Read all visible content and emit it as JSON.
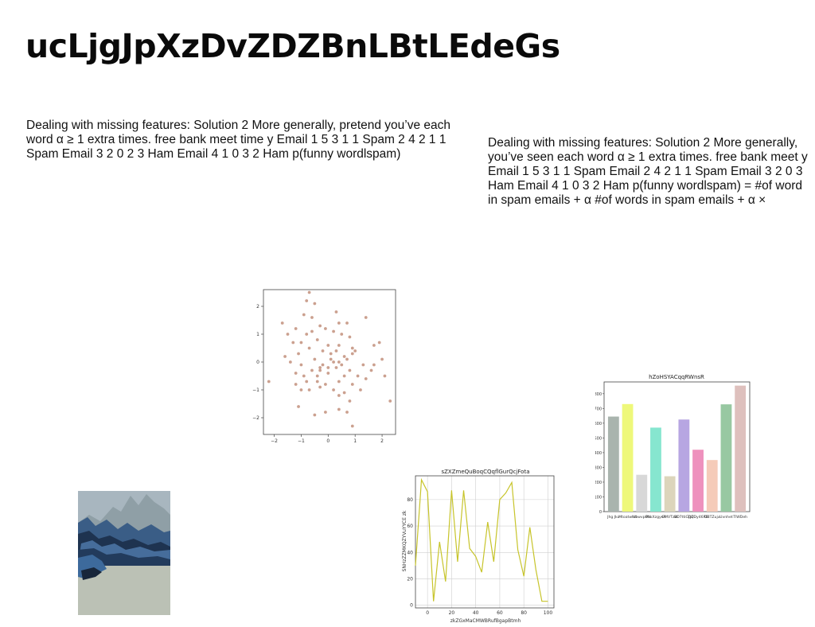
{
  "title": "ucLjgJpXzDvZDZBnLBtLEdeGs",
  "paragraph_left": "Dealing with missing features: Solution 2 More generally, pretend you’ve each word α ≥ 1 extra times. free bank meet time y Email 1 5 3 1 1 Spam 2 4 2 1 1 Spam Email 3 2 0 2 3 Ham Email 4 1 0 3 2 Ham p(funny wordlspam)",
  "paragraph_right": "Dealing with missing features: Solution 2 More generally, you’ve seen each word α ≥ 1 extra times. free bank meet y Email 1 5 3 1 1 Spam Email 2 4 2 1 1 Spam Email 3 2 0 3 Ham Email 4 1 0 3 2 Ham p(funny wordlspam) = #of word in spam emails + α #of words in spam emails + α ×",
  "photo": {
    "subject": "mountain-landscape",
    "colors": [
      "#a6b4be",
      "#3c5f88",
      "#b8bfb3"
    ]
  },
  "chart_data": [
    {
      "type": "scatter",
      "title": "",
      "xlabel": "",
      "ylabel": "",
      "xlim": [
        -2.4,
        2.5
      ],
      "ylim": [
        -2.6,
        2.6
      ],
      "xticks": [
        -2,
        -1,
        0,
        1,
        2
      ],
      "yticks": [
        -2,
        -1,
        0,
        1,
        2
      ],
      "color": "#b9806a",
      "points": [
        [
          -0.7,
          2.5
        ],
        [
          -0.8,
          2.2
        ],
        [
          -0.5,
          2.1
        ],
        [
          -0.9,
          1.7
        ],
        [
          0.3,
          1.8
        ],
        [
          1.4,
          1.6
        ],
        [
          -1.7,
          1.4
        ],
        [
          -0.6,
          1.6
        ],
        [
          0.4,
          1.4
        ],
        [
          0.7,
          1.4
        ],
        [
          -1.2,
          1.2
        ],
        [
          -0.3,
          1.3
        ],
        [
          -0.1,
          1.2
        ],
        [
          0.2,
          1.1
        ],
        [
          -1.5,
          1.0
        ],
        [
          -0.8,
          1.0
        ],
        [
          -0.6,
          1.1
        ],
        [
          0.5,
          1.0
        ],
        [
          0.8,
          0.9
        ],
        [
          -1.3,
          0.7
        ],
        [
          -1.0,
          0.7
        ],
        [
          -0.4,
          0.8
        ],
        [
          0.0,
          0.6
        ],
        [
          0.4,
          0.6
        ],
        [
          0.9,
          0.5
        ],
        [
          1.7,
          0.6
        ],
        [
          1.9,
          0.7
        ],
        [
          -1.6,
          0.2
        ],
        [
          -1.1,
          0.3
        ],
        [
          -0.7,
          0.5
        ],
        [
          -0.2,
          0.4
        ],
        [
          0.1,
          0.3
        ],
        [
          0.3,
          0.4
        ],
        [
          0.6,
          0.2
        ],
        [
          1.0,
          0.4
        ],
        [
          -1.4,
          0.0
        ],
        [
          -1.0,
          -0.1
        ],
        [
          -0.5,
          0.1
        ],
        [
          -0.2,
          -0.1
        ],
        [
          0.2,
          0.0
        ],
        [
          0.5,
          -0.1
        ],
        [
          0.7,
          0.1
        ],
        [
          1.3,
          -0.1
        ],
        [
          1.7,
          -0.1
        ],
        [
          2.0,
          0.1
        ],
        [
          -1.2,
          -0.4
        ],
        [
          -0.6,
          -0.3
        ],
        [
          -0.3,
          -0.3
        ],
        [
          0.0,
          -0.4
        ],
        [
          0.3,
          -0.2
        ],
        [
          0.8,
          -0.3
        ],
        [
          1.1,
          -0.5
        ],
        [
          1.6,
          -0.3
        ],
        [
          -0.8,
          -0.7
        ],
        [
          -0.4,
          -0.7
        ],
        [
          -0.1,
          -0.8
        ],
        [
          0.4,
          -0.7
        ],
        [
          0.9,
          -0.8
        ],
        [
          1.4,
          -0.6
        ],
        [
          2.1,
          -0.5
        ],
        [
          -2.2,
          -0.7
        ],
        [
          -1.2,
          -0.8
        ],
        [
          -1.0,
          -1.0
        ],
        [
          -0.7,
          -1.0
        ],
        [
          -0.3,
          -0.9
        ],
        [
          0.2,
          -1.0
        ],
        [
          0.6,
          -1.1
        ],
        [
          1.2,
          -1.0
        ],
        [
          -1.1,
          -1.6
        ],
        [
          -0.5,
          -1.9
        ],
        [
          -0.1,
          -1.8
        ],
        [
          0.4,
          -1.7
        ],
        [
          0.7,
          -1.8
        ],
        [
          0.8,
          -1.4
        ],
        [
          0.4,
          -1.2
        ],
        [
          2.3,
          -1.4
        ],
        [
          0.9,
          -2.3
        ],
        [
          -0.3,
          -0.2
        ],
        [
          0.1,
          0.1
        ],
        [
          0.4,
          0.0
        ],
        [
          -0.9,
          -0.5
        ],
        [
          0.6,
          -0.5
        ],
        [
          0.9,
          0.3
        ],
        [
          -0.4,
          -0.5
        ],
        [
          0.0,
          -0.2
        ]
      ]
    },
    {
      "type": "line",
      "title": "sZXZmeQuBoqCQqflGurQcjFota",
      "xlabel": "zkZGxMaCMWBRufBgapBtmh",
      "ylabel": "SNHzZZMKQZYVuYYCE zk",
      "xlim": [
        -10,
        105
      ],
      "ylim": [
        -2,
        98
      ],
      "xticks": [
        0,
        20,
        40,
        60,
        80,
        100
      ],
      "yticks": [
        0,
        20,
        40,
        60,
        80
      ],
      "grid": true,
      "color": "#c7c42a",
      "x": [
        -10,
        -5,
        0,
        5,
        10,
        15,
        20,
        25,
        30,
        35,
        40,
        45,
        50,
        55,
        60,
        65,
        70,
        75,
        80,
        85,
        90,
        95,
        100
      ],
      "y": [
        30,
        95,
        86,
        3,
        48,
        18,
        87,
        33,
        87,
        43,
        37,
        25,
        63,
        33,
        80,
        85,
        93,
        42,
        22,
        59,
        27,
        3,
        3
      ]
    },
    {
      "type": "bar",
      "title": "hZoHSYACqqRWnsR",
      "xlabel": "",
      "ylabel": "",
      "ylim": [
        0,
        880
      ],
      "yticks": [
        0,
        100,
        200,
        300,
        400,
        500,
        600,
        700,
        800
      ],
      "categories": [
        "Jhg Jku",
        "Mtoatwhd",
        "Ubwvpktk",
        "PhkXzgyeA",
        "GMVTzW",
        "BD7ttiGpQ",
        "TJZDy46RB",
        "OBTZuju",
        "Uvnhet",
        "TlWDeh"
      ],
      "values": [
        645,
        730,
        250,
        570,
        240,
        625,
        420,
        350,
        728,
        855
      ],
      "colors": [
        "#a9b4ae",
        "#eef87a",
        "#d8d8d8",
        "#86e6cf",
        "#dcd5bb",
        "#b7a6e2",
        "#ee91bd",
        "#f5cbb9",
        "#98c8a2",
        "#dec0bd"
      ]
    }
  ]
}
